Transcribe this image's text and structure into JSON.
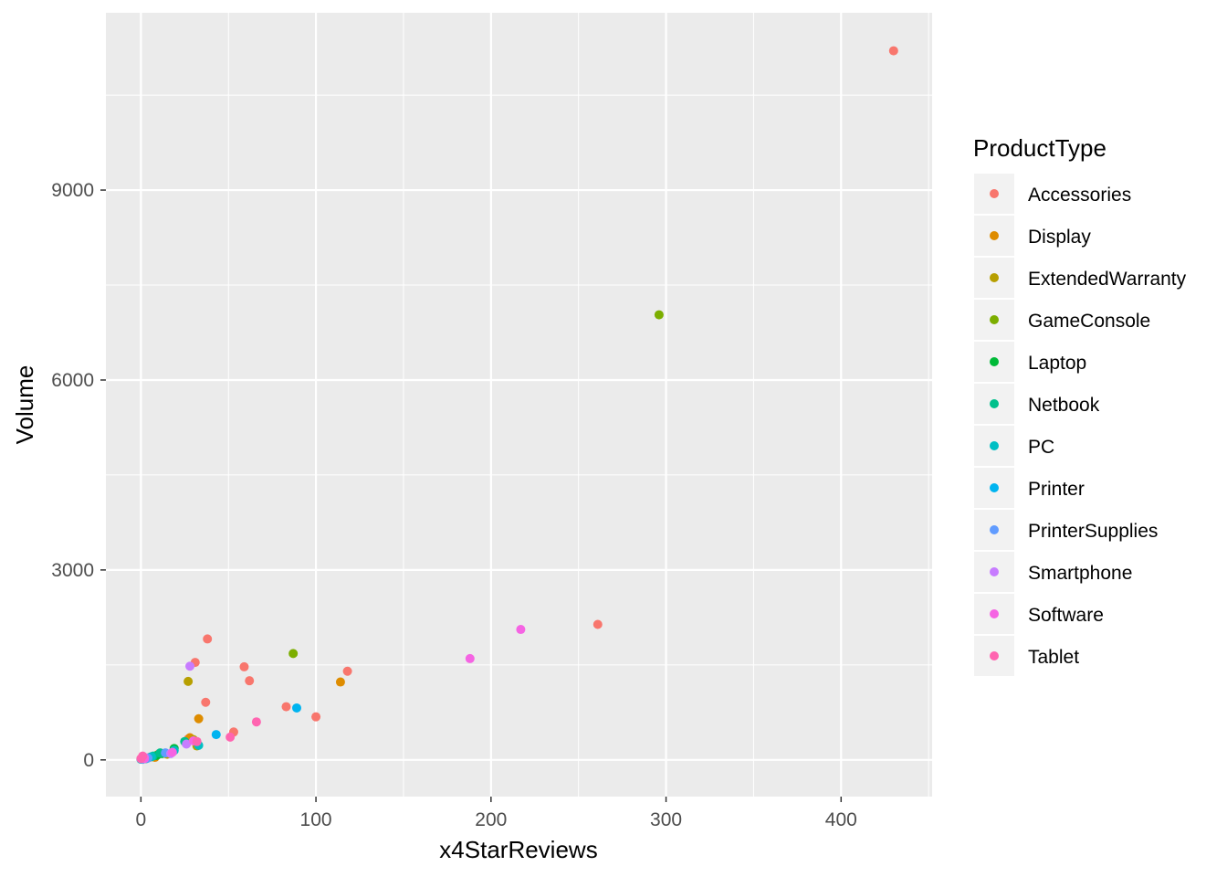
{
  "chart_data": {
    "type": "scatter",
    "title": "",
    "xlabel": "x4StarReviews",
    "ylabel": "Volume",
    "xlim": [
      -20,
      452
    ],
    "ylim": [
      -580,
      11800
    ],
    "x_ticks": [
      0,
      100,
      200,
      300,
      400
    ],
    "y_ticks": [
      0,
      3000,
      6000,
      9000
    ],
    "grid": true,
    "legend": {
      "title": "ProductType",
      "position": "right"
    },
    "series": [
      {
        "name": "Accessories",
        "color": "#F8766D",
        "points": [
          [
            430,
            11200
          ],
          [
            261,
            2140
          ],
          [
            118,
            1400
          ],
          [
            100,
            680
          ],
          [
            83,
            840
          ],
          [
            62,
            1250
          ],
          [
            59,
            1470
          ],
          [
            53,
            440
          ],
          [
            38,
            1910
          ],
          [
            37,
            910
          ],
          [
            31,
            1540
          ],
          [
            27,
            330
          ],
          [
            10,
            90
          ],
          [
            5,
            40
          ],
          [
            2,
            20
          ]
        ]
      },
      {
        "name": "Display",
        "color": "#DE8C00",
        "points": [
          [
            114,
            1230
          ],
          [
            33,
            650
          ],
          [
            28,
            350
          ],
          [
            8,
            40
          ]
        ]
      },
      {
        "name": "ExtendedWarranty",
        "color": "#B79F00",
        "points": [
          [
            27,
            1240
          ],
          [
            30,
            320
          ],
          [
            32,
            220
          ],
          [
            15,
            90
          ],
          [
            3,
            20
          ]
        ]
      },
      {
        "name": "GameConsole",
        "color": "#7CAE00",
        "points": [
          [
            296,
            7030
          ],
          [
            87,
            1680
          ]
        ]
      },
      {
        "name": "Laptop",
        "color": "#00BA38",
        "points": [
          [
            19,
            180
          ],
          [
            12,
            100
          ],
          [
            9,
            70
          ],
          [
            1,
            10
          ]
        ]
      },
      {
        "name": "Netbook",
        "color": "#00C08B",
        "points": [
          [
            25,
            290
          ],
          [
            11,
            110
          ],
          [
            7,
            60
          ]
        ]
      },
      {
        "name": "PC",
        "color": "#00BFC4",
        "points": [
          [
            33,
            230
          ],
          [
            19,
            150
          ],
          [
            6,
            50
          ],
          [
            0,
            10
          ]
        ]
      },
      {
        "name": "Printer",
        "color": "#00B4F0",
        "points": [
          [
            89,
            820
          ],
          [
            43,
            400
          ],
          [
            3,
            20
          ]
        ]
      },
      {
        "name": "PrinterSupplies",
        "color": "#619CFF",
        "points": [
          [
            14,
            110
          ],
          [
            4,
            30
          ],
          [
            1,
            10
          ]
        ]
      },
      {
        "name": "Smartphone",
        "color": "#C77CFF",
        "points": [
          [
            28,
            1480
          ],
          [
            26,
            250
          ],
          [
            17,
            100
          ],
          [
            2,
            40
          ]
        ]
      },
      {
        "name": "Software",
        "color": "#F564E3",
        "points": [
          [
            217,
            2060
          ],
          [
            188,
            1600
          ],
          [
            30,
            300
          ],
          [
            18,
            120
          ],
          [
            2,
            20
          ]
        ]
      },
      {
        "name": "Tablet",
        "color": "#FF64B0",
        "points": [
          [
            66,
            600
          ],
          [
            51,
            360
          ],
          [
            32,
            290
          ],
          [
            1,
            60
          ],
          [
            0,
            20
          ]
        ]
      }
    ]
  }
}
